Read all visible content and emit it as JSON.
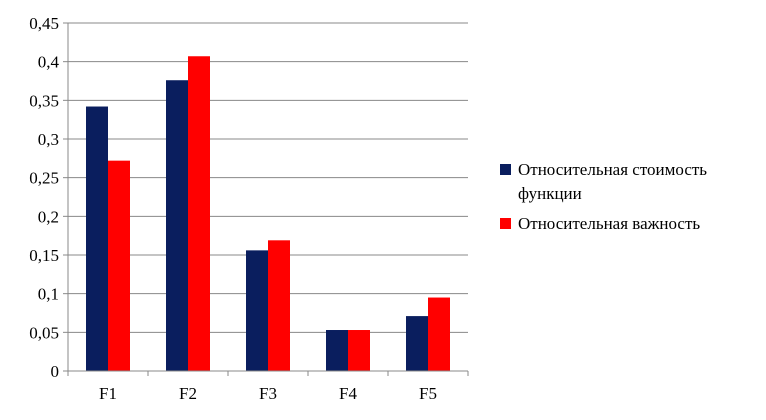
{
  "chart_data": {
    "type": "bar",
    "categories": [
      "F1",
      "F2",
      "F3",
      "F4",
      "F5"
    ],
    "series": [
      {
        "name": "Относительная стоимость функции",
        "color": "#0a1e5e",
        "values": [
          0.342,
          0.376,
          0.156,
          0.053,
          0.071
        ]
      },
      {
        "name": "Относительная важность",
        "color": "#ff0000",
        "values": [
          0.272,
          0.407,
          0.169,
          0.053,
          0.095
        ]
      }
    ],
    "ylim": [
      0,
      0.45
    ],
    "yticks": [
      "0",
      "0,05",
      "0,1",
      "0,15",
      "0,2",
      "0,25",
      "0,3",
      "0,35",
      "0,4",
      "0,45"
    ],
    "grid": true,
    "legend_position": "right"
  }
}
